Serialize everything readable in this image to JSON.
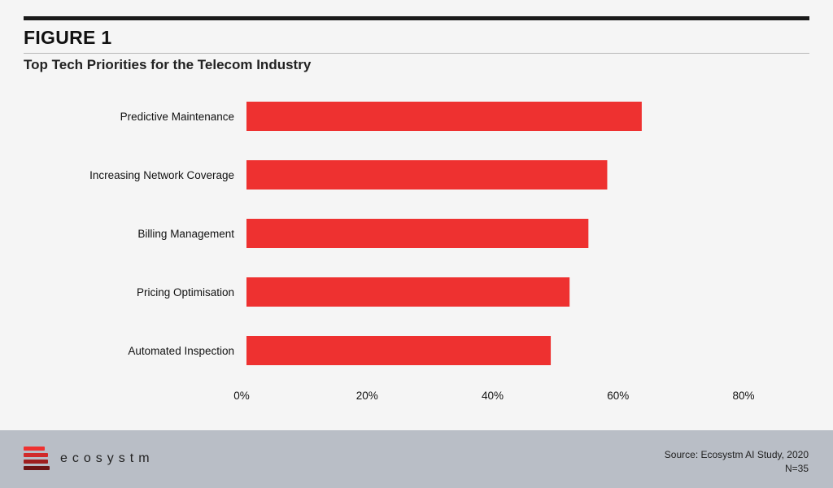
{
  "header": {
    "figure_label": "FIGURE 1",
    "title": "Top Tech Priorities for the Telecom Industry"
  },
  "chart_data": {
    "type": "bar",
    "orientation": "horizontal",
    "categories": [
      "Predictive Maintenance",
      "Increasing Network Coverage",
      "Billing Management",
      "Pricing Optimisation",
      "Automated Inspection"
    ],
    "values": [
      63,
      57.5,
      54.5,
      51.5,
      48.5
    ],
    "unit": "%",
    "xlim": [
      0,
      80
    ],
    "x_ticks": [
      0,
      20,
      40,
      60,
      80
    ],
    "x_tick_labels": [
      "0%",
      "20%",
      "40%",
      "60%",
      "80%"
    ],
    "bar_color": "#ee3130",
    "grid": false
  },
  "footer": {
    "brand": "ecosystm",
    "source": "Source: Ecosystm AI Study, 2020",
    "sample": "N=35",
    "logo_colors": [
      "#ee3130",
      "#d12a2a",
      "#9e1f1f",
      "#6d1515"
    ]
  }
}
